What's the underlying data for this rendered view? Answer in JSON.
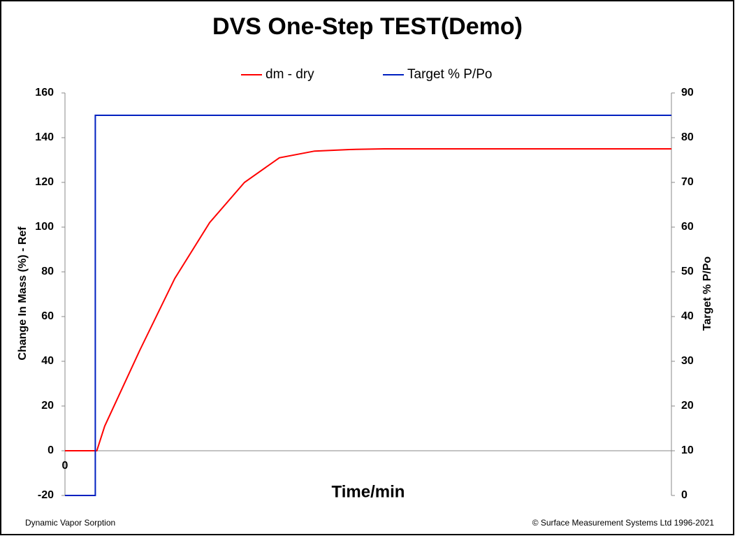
{
  "chart_data": {
    "type": "line",
    "title": "DVS One-Step TEST(Demo)",
    "x_label": "Time/min",
    "y_label": "Change In Mass (%) - Ref",
    "y2_label": "Target % P/Po",
    "footer_left": "Dynamic Vapor Sorption",
    "footer_right": "© Surface Measurement Systems Ltd 1996-2021",
    "xlim": [
      0,
      200
    ],
    "xticks": [
      0
    ],
    "ylim": [
      -20,
      160
    ],
    "yticks": [
      -20,
      0,
      20,
      40,
      60,
      80,
      100,
      120,
      140,
      160
    ],
    "y2lim": [
      0,
      90
    ],
    "y2ticks": [
      0,
      10,
      20,
      30,
      40,
      50,
      60,
      70,
      80,
      90
    ],
    "grid": false,
    "legend": "top",
    "series": [
      {
        "name": "dm - dry",
        "color": "#ff0000",
        "x": [
          0,
          10.5,
          13.1,
          24.7,
          36.2,
          47.7,
          59.2,
          70.7,
          82.3,
          93.8,
          105.3,
          200
        ],
        "values": [
          0,
          0,
          11,
          45,
          77,
          102,
          120,
          131,
          134,
          134.7,
          135,
          135
        ]
      },
      {
        "name": "Target % P/Po",
        "color": "#0020c0",
        "axis": "y2",
        "x": [
          0,
          10,
          10,
          200
        ],
        "values": [
          0,
          0,
          85,
          85
        ]
      }
    ]
  }
}
